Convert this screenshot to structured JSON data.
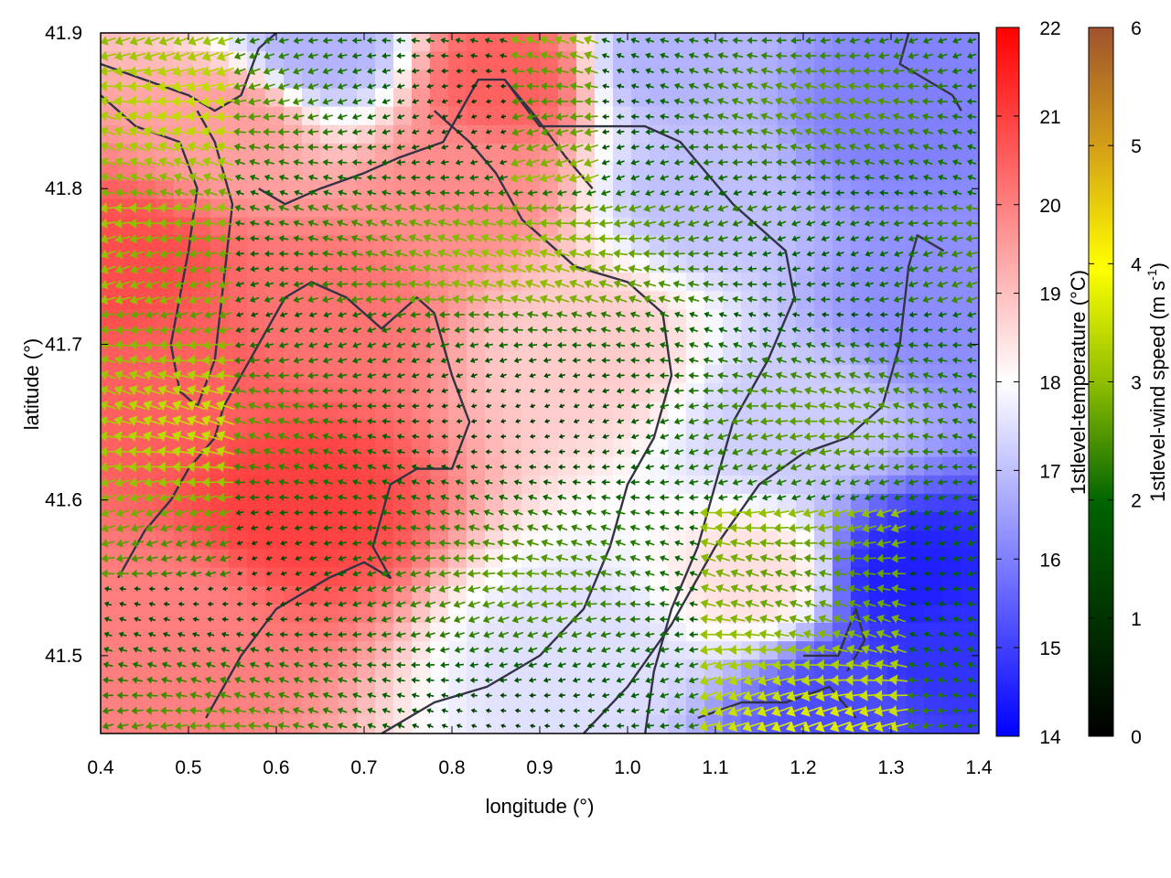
{
  "chart_data": {
    "type": "heatmap",
    "title": "",
    "xlabel": "longitude (°)",
    "ylabel": "latitude (°)",
    "xlim": [
      0.4,
      1.4
    ],
    "ylim": [
      41.45,
      41.9
    ],
    "xticks": [
      "0.4",
      "0.5",
      "0.6",
      "0.7",
      "0.8",
      "0.9",
      "1.0",
      "1.1",
      "1.2",
      "1.3",
      "1.4"
    ],
    "yticks": [
      "41.5",
      "41.6",
      "41.7",
      "41.8",
      "41.9"
    ],
    "temperature_colorbar": {
      "label": "1stlevel-temperature (°C)",
      "range": [
        14,
        22
      ],
      "ticks": [
        "14",
        "15",
        "16",
        "17",
        "18",
        "19",
        "20",
        "21",
        "22"
      ],
      "colors": [
        "#0000ff",
        "#ffffff",
        "#ff0000"
      ]
    },
    "windspeed_colorbar": {
      "label_main": "1stlevel-wind speed (m s",
      "label_sup": "-1",
      "label_end": ")",
      "range": [
        0,
        6
      ],
      "ticks": [
        "0",
        "1",
        "2",
        "3",
        "4",
        "5",
        "6"
      ],
      "colors": [
        "#000000",
        "#006400",
        "#8fbe00",
        "#ffff00",
        "#d4a017",
        "#a0522d"
      ]
    },
    "temperature_centers": [
      {
        "lon": 0.43,
        "lat": 41.75,
        "t": 20.8
      },
      {
        "lon": 0.5,
        "lat": 41.68,
        "t": 20.5
      },
      {
        "lon": 0.62,
        "lat": 41.6,
        "t": 21.0
      },
      {
        "lon": 0.66,
        "lat": 41.72,
        "t": 20.2
      },
      {
        "lon": 0.47,
        "lat": 41.52,
        "t": 20.0
      },
      {
        "lon": 0.86,
        "lat": 41.87,
        "t": 20.5
      },
      {
        "lon": 0.82,
        "lat": 41.8,
        "t": 19.8
      },
      {
        "lon": 0.55,
        "lat": 41.84,
        "t": 19.5
      },
      {
        "lon": 0.95,
        "lat": 41.7,
        "t": 18.8
      },
      {
        "lon": 1.15,
        "lat": 41.55,
        "t": 18.5
      },
      {
        "lon": 1.32,
        "lat": 41.55,
        "t": 14.5
      },
      {
        "lon": 1.35,
        "lat": 41.5,
        "t": 14.8
      },
      {
        "lon": 1.25,
        "lat": 41.47,
        "t": 15.2
      },
      {
        "lon": 1.3,
        "lat": 41.85,
        "t": 16.0
      },
      {
        "lon": 1.35,
        "lat": 41.72,
        "t": 16.2
      },
      {
        "lon": 1.08,
        "lat": 41.8,
        "t": 17.0
      },
      {
        "lon": 1.05,
        "lat": 41.88,
        "t": 16.8
      },
      {
        "lon": 0.65,
        "lat": 41.89,
        "t": 16.8
      },
      {
        "lon": 1.2,
        "lat": 41.65,
        "t": 17.2
      },
      {
        "lon": 0.95,
        "lat": 41.5,
        "t": 17.5
      }
    ],
    "coastlines": [
      [
        [
          0.4,
          41.88
        ],
        [
          0.45,
          41.87
        ],
        [
          0.5,
          41.86
        ],
        [
          0.53,
          41.85
        ],
        [
          0.56,
          41.86
        ],
        [
          0.58,
          41.89
        ],
        [
          0.6,
          41.9
        ]
      ],
      [
        [
          0.4,
          41.86
        ],
        [
          0.44,
          41.84
        ],
        [
          0.49,
          41.83
        ],
        [
          0.51,
          41.8
        ],
        [
          0.5,
          41.76
        ],
        [
          0.48,
          41.7
        ],
        [
          0.49,
          41.67
        ],
        [
          0.51,
          41.66
        ],
        [
          0.53,
          41.69
        ],
        [
          0.54,
          41.74
        ],
        [
          0.55,
          41.79
        ],
        [
          0.53,
          41.83
        ],
        [
          0.51,
          41.85
        ]
      ],
      [
        [
          0.54,
          41.66
        ],
        [
          0.58,
          41.7
        ],
        [
          0.61,
          41.73
        ],
        [
          0.64,
          41.74
        ],
        [
          0.68,
          41.73
        ],
        [
          0.72,
          41.71
        ],
        [
          0.76,
          41.73
        ],
        [
          0.78,
          41.72
        ],
        [
          0.8,
          41.68
        ],
        [
          0.82,
          41.65
        ],
        [
          0.8,
          41.62
        ],
        [
          0.76,
          41.62
        ],
        [
          0.73,
          41.61
        ],
        [
          0.71,
          41.57
        ],
        [
          0.73,
          41.55
        ],
        [
          0.7,
          41.56
        ],
        [
          0.66,
          41.55
        ],
        [
          0.6,
          41.53
        ],
        [
          0.56,
          41.5
        ],
        [
          0.52,
          41.46
        ]
      ],
      [
        [
          0.58,
          41.8
        ],
        [
          0.61,
          41.79
        ],
        [
          0.65,
          41.8
        ],
        [
          0.7,
          41.81
        ],
        [
          0.74,
          41.82
        ],
        [
          0.79,
          41.83
        ],
        [
          0.83,
          41.87
        ],
        [
          0.86,
          41.87
        ],
        [
          0.89,
          41.85
        ],
        [
          0.93,
          41.82
        ],
        [
          0.96,
          41.8
        ]
      ],
      [
        [
          0.86,
          41.87
        ],
        [
          0.9,
          41.84
        ],
        [
          0.96,
          41.84
        ],
        [
          1.02,
          41.84
        ],
        [
          1.06,
          41.83
        ],
        [
          1.12,
          41.79
        ],
        [
          1.18,
          41.76
        ],
        [
          1.19,
          41.73
        ],
        [
          1.16,
          41.69
        ],
        [
          1.12,
          41.65
        ],
        [
          1.1,
          41.61
        ],
        [
          1.08,
          41.57
        ],
        [
          1.05,
          41.53
        ],
        [
          1.03,
          41.49
        ],
        [
          1.02,
          41.45
        ]
      ],
      [
        [
          0.78,
          41.85
        ],
        [
          0.82,
          41.83
        ],
        [
          0.85,
          41.81
        ],
        [
          0.88,
          41.78
        ],
        [
          0.94,
          41.75
        ],
        [
          1.0,
          41.74
        ],
        [
          1.04,
          41.72
        ],
        [
          1.05,
          41.68
        ],
        [
          1.03,
          41.64
        ],
        [
          1.0,
          41.61
        ],
        [
          0.98,
          41.57
        ],
        [
          0.95,
          41.53
        ],
        [
          0.9,
          41.5
        ],
        [
          0.84,
          41.48
        ],
        [
          0.78,
          41.47
        ],
        [
          0.72,
          41.45
        ]
      ],
      [
        [
          0.95,
          41.45
        ],
        [
          1.0,
          41.48
        ],
        [
          1.05,
          41.52
        ],
        [
          1.1,
          41.57
        ],
        [
          1.15,
          41.61
        ],
        [
          1.2,
          41.63
        ],
        [
          1.25,
          41.64
        ],
        [
          1.29,
          41.66
        ],
        [
          1.31,
          41.7
        ],
        [
          1.32,
          41.75
        ],
        [
          1.33,
          41.77
        ],
        [
          1.36,
          41.76
        ]
      ],
      [
        [
          1.08,
          41.46
        ],
        [
          1.13,
          41.47
        ],
        [
          1.18,
          41.47
        ],
        [
          1.23,
          41.48
        ],
        [
          1.26,
          41.46
        ]
      ],
      [
        [
          1.2,
          41.5
        ],
        [
          1.24,
          41.5
        ],
        [
          1.26,
          41.53
        ],
        [
          1.27,
          41.51
        ],
        [
          1.25,
          41.49
        ]
      ],
      [
        [
          1.32,
          41.9
        ],
        [
          1.31,
          41.88
        ],
        [
          1.34,
          41.87
        ],
        [
          1.37,
          41.86
        ],
        [
          1.38,
          41.85
        ]
      ],
      [
        [
          0.42,
          41.55
        ],
        [
          0.45,
          41.58
        ],
        [
          0.48,
          41.6
        ],
        [
          0.5,
          41.62
        ],
        [
          0.53,
          41.64
        ],
        [
          0.54,
          41.66
        ]
      ]
    ]
  }
}
